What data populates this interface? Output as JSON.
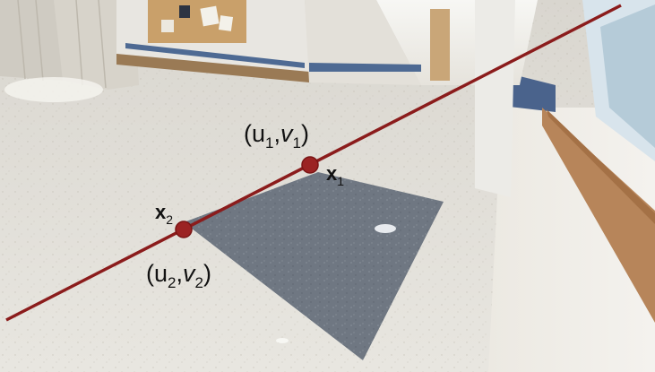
{
  "figure": {
    "point1": {
      "coord_text": "(u",
      "u_sub": "1",
      "comma": ",",
      "v_main": "v",
      "v_sub": "1",
      "close": ")",
      "vec_label": "x",
      "vec_sub": "1"
    },
    "point2": {
      "coord_text": "(u",
      "u_sub": "2",
      "comma": ",",
      "v_main": "v",
      "v_sub": "2",
      "close": ")",
      "vec_label": "x",
      "vec_sub": "2"
    }
  },
  "colors": {
    "line": "#8b1c1c",
    "point_fill": "#9b2323",
    "point_stroke": "#7a1515"
  }
}
